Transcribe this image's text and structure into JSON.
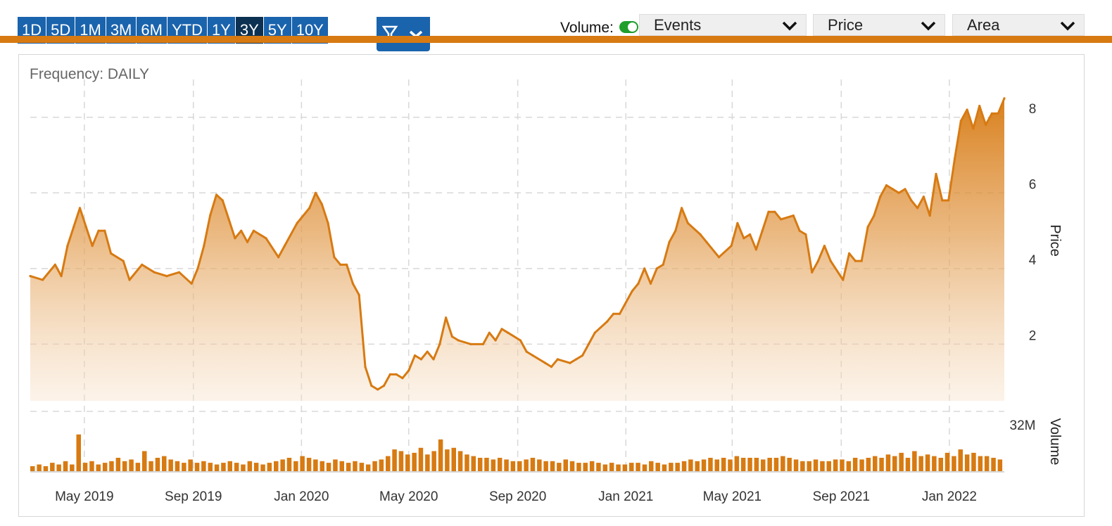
{
  "toolbar": {
    "ranges": [
      "1D",
      "5D",
      "1M",
      "3M",
      "6M",
      "YTD",
      "1Y",
      "3Y",
      "5Y",
      "10Y"
    ],
    "active_range": "3Y",
    "volume_label": "Volume:",
    "volume_on": true,
    "events_label": "Events",
    "price_label": "Price",
    "area_label": "Area"
  },
  "frequency_label": "Frequency: DAILY",
  "colors": {
    "accent": "#d77a12",
    "button": "#1a63ad",
    "button_active": "#0c3152",
    "toggle_on": "#1f9e2c"
  },
  "chart_data": {
    "type": "area",
    "series": [
      {
        "points": [
          [
            "2019-03-01",
            3.8
          ],
          [
            "2019-03-15",
            3.7
          ],
          [
            "2019-03-29",
            4.1
          ],
          [
            "2019-04-05",
            3.8
          ],
          [
            "2019-04-12",
            4.6
          ],
          [
            "2019-04-19",
            5.1
          ],
          [
            "2019-04-26",
            5.6
          ],
          [
            "2019-05-03",
            5.1
          ],
          [
            "2019-05-10",
            4.6
          ],
          [
            "2019-05-17",
            5.0
          ],
          [
            "2019-05-24",
            5.0
          ],
          [
            "2019-05-31",
            4.4
          ],
          [
            "2019-06-14",
            4.2
          ],
          [
            "2019-06-21",
            3.7
          ],
          [
            "2019-07-05",
            4.1
          ],
          [
            "2019-07-19",
            3.9
          ],
          [
            "2019-08-02",
            3.8
          ],
          [
            "2019-08-16",
            3.9
          ],
          [
            "2019-08-30",
            3.6
          ],
          [
            "2019-09-06",
            4.0
          ],
          [
            "2019-09-13",
            4.6
          ],
          [
            "2019-09-20",
            5.4
          ],
          [
            "2019-09-27",
            5.95
          ],
          [
            "2019-10-04",
            5.8
          ],
          [
            "2019-10-11",
            5.3
          ],
          [
            "2019-10-18",
            4.8
          ],
          [
            "2019-10-25",
            5.0
          ],
          [
            "2019-11-01",
            4.7
          ],
          [
            "2019-11-08",
            5.0
          ],
          [
            "2019-11-22",
            4.8
          ],
          [
            "2019-12-06",
            4.3
          ],
          [
            "2019-12-13",
            4.6
          ],
          [
            "2019-12-27",
            5.2
          ],
          [
            "2020-01-10",
            5.6
          ],
          [
            "2020-01-17",
            6.0
          ],
          [
            "2020-01-24",
            5.7
          ],
          [
            "2020-01-31",
            5.2
          ],
          [
            "2020-02-07",
            4.3
          ],
          [
            "2020-02-14",
            4.1
          ],
          [
            "2020-02-21",
            4.1
          ],
          [
            "2020-02-28",
            3.6
          ],
          [
            "2020-03-06",
            3.3
          ],
          [
            "2020-03-13",
            1.4
          ],
          [
            "2020-03-20",
            0.9
          ],
          [
            "2020-03-27",
            0.8
          ],
          [
            "2020-04-03",
            0.9
          ],
          [
            "2020-04-10",
            1.2
          ],
          [
            "2020-04-17",
            1.2
          ],
          [
            "2020-04-24",
            1.1
          ],
          [
            "2020-05-01",
            1.3
          ],
          [
            "2020-05-08",
            1.7
          ],
          [
            "2020-05-15",
            1.6
          ],
          [
            "2020-05-22",
            1.8
          ],
          [
            "2020-05-29",
            1.6
          ],
          [
            "2020-06-05",
            2.0
          ],
          [
            "2020-06-12",
            2.7
          ],
          [
            "2020-06-19",
            2.2
          ],
          [
            "2020-06-26",
            2.1
          ],
          [
            "2020-07-10",
            2.0
          ],
          [
            "2020-07-24",
            2.0
          ],
          [
            "2020-07-31",
            2.3
          ],
          [
            "2020-08-07",
            2.1
          ],
          [
            "2020-08-14",
            2.4
          ],
          [
            "2020-08-21",
            2.3
          ],
          [
            "2020-09-04",
            2.1
          ],
          [
            "2020-09-11",
            1.8
          ],
          [
            "2020-09-18",
            1.7
          ],
          [
            "2020-10-02",
            1.5
          ],
          [
            "2020-10-09",
            1.4
          ],
          [
            "2020-10-16",
            1.6
          ],
          [
            "2020-10-30",
            1.5
          ],
          [
            "2020-11-06",
            1.6
          ],
          [
            "2020-11-13",
            1.7
          ],
          [
            "2020-11-20",
            2.0
          ],
          [
            "2020-11-27",
            2.3
          ],
          [
            "2020-12-11",
            2.6
          ],
          [
            "2020-12-18",
            2.8
          ],
          [
            "2020-12-25",
            2.8
          ],
          [
            "2021-01-08",
            3.4
          ],
          [
            "2021-01-15",
            3.6
          ],
          [
            "2021-01-22",
            4.0
          ],
          [
            "2021-01-29",
            3.6
          ],
          [
            "2021-02-05",
            4.0
          ],
          [
            "2021-02-12",
            4.1
          ],
          [
            "2021-02-19",
            4.7
          ],
          [
            "2021-02-26",
            5.0
          ],
          [
            "2021-03-05",
            5.6
          ],
          [
            "2021-03-12",
            5.2
          ],
          [
            "2021-03-26",
            4.9
          ],
          [
            "2021-04-02",
            4.7
          ],
          [
            "2021-04-16",
            4.3
          ],
          [
            "2021-04-30",
            4.6
          ],
          [
            "2021-05-07",
            5.2
          ],
          [
            "2021-05-14",
            4.8
          ],
          [
            "2021-05-21",
            4.9
          ],
          [
            "2021-05-28",
            4.5
          ],
          [
            "2021-06-04",
            5.0
          ],
          [
            "2021-06-11",
            5.5
          ],
          [
            "2021-06-18",
            5.5
          ],
          [
            "2021-06-25",
            5.3
          ],
          [
            "2021-07-09",
            5.4
          ],
          [
            "2021-07-16",
            5.0
          ],
          [
            "2021-07-23",
            4.9
          ],
          [
            "2021-07-30",
            3.9
          ],
          [
            "2021-08-06",
            4.2
          ],
          [
            "2021-08-13",
            4.6
          ],
          [
            "2021-08-20",
            4.2
          ],
          [
            "2021-09-03",
            3.7
          ],
          [
            "2021-09-10",
            4.4
          ],
          [
            "2021-09-17",
            4.2
          ],
          [
            "2021-09-24",
            4.2
          ],
          [
            "2021-10-01",
            5.1
          ],
          [
            "2021-10-08",
            5.4
          ],
          [
            "2021-10-15",
            5.9
          ],
          [
            "2021-10-22",
            6.2
          ],
          [
            "2021-10-29",
            6.1
          ],
          [
            "2021-11-05",
            6.0
          ],
          [
            "2021-11-12",
            6.1
          ],
          [
            "2021-11-19",
            5.8
          ],
          [
            "2021-11-26",
            5.6
          ],
          [
            "2021-12-03",
            5.9
          ],
          [
            "2021-12-10",
            5.4
          ],
          [
            "2021-12-17",
            6.5
          ],
          [
            "2021-12-24",
            5.8
          ],
          [
            "2021-12-31",
            5.8
          ],
          [
            "2022-01-07",
            6.9
          ],
          [
            "2022-01-14",
            7.9
          ],
          [
            "2022-01-21",
            8.2
          ],
          [
            "2022-01-28",
            7.7
          ],
          [
            "2022-02-04",
            8.3
          ],
          [
            "2022-02-11",
            7.8
          ],
          [
            "2022-02-18",
            8.1
          ],
          [
            "2022-02-25",
            8.1
          ],
          [
            "2022-03-04",
            8.5
          ]
        ]
      }
    ],
    "volume_bars": [
      3,
      4,
      3,
      5,
      4,
      6,
      4,
      22,
      5,
      6,
      4,
      5,
      6,
      8,
      6,
      7,
      5,
      12,
      6,
      8,
      9,
      7,
      6,
      5,
      7,
      5,
      6,
      5,
      4,
      5,
      6,
      5,
      4,
      6,
      5,
      4,
      5,
      6,
      7,
      8,
      6,
      9,
      8,
      7,
      6,
      5,
      7,
      6,
      5,
      6,
      5,
      4,
      6,
      7,
      9,
      13,
      12,
      10,
      11,
      14,
      10,
      12,
      19,
      13,
      14,
      12,
      10,
      9,
      8,
      8,
      7,
      8,
      7,
      6,
      6,
      7,
      8,
      7,
      6,
      6,
      5,
      7,
      6,
      5,
      5,
      6,
      5,
      4,
      5,
      4,
      4,
      5,
      5,
      4,
      6,
      5,
      4,
      5,
      5,
      6,
      7,
      6,
      7,
      8,
      7,
      8,
      7,
      9,
      8,
      8,
      8,
      7,
      8,
      8,
      9,
      8,
      7,
      6,
      6,
      7,
      6,
      6,
      7,
      7,
      6,
      8,
      7,
      8,
      9,
      8,
      10,
      9,
      11,
      8,
      12,
      9,
      10,
      9,
      8,
      11,
      9,
      13,
      10,
      11,
      9,
      9,
      8,
      7
    ],
    "x_ticks": [
      "May 2019",
      "Sep 2019",
      "Jan 2020",
      "May 2020",
      "Sep 2020",
      "Jan 2021",
      "May 2021",
      "Sep 2021",
      "Jan 2022"
    ],
    "y_ticks": [
      2,
      4,
      6,
      8
    ],
    "ylim": [
      0.5,
      9
    ],
    "y_axis_label": "Price",
    "volume_axis_label": "Volume",
    "volume_tick": "32M",
    "volume_max": 32,
    "grid": true
  }
}
